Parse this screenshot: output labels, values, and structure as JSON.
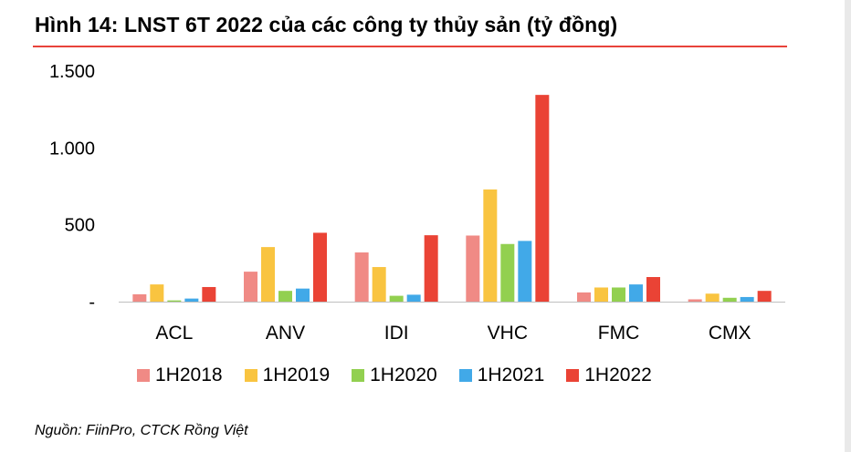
{
  "figure": {
    "title": "Hình 14: LNST 6T 2022 của các công ty thủy sản (tỷ đồng)",
    "source": "Nguồn: FiinPro, CTCK Rồng Việt",
    "rule_color": "#e8433a"
  },
  "chart_data": {
    "type": "bar",
    "title": "Hình 14: LNST 6T 2022 của các công ty thủy sản (tỷ đồng)",
    "xlabel": "",
    "ylabel": "",
    "ylim": [
      0,
      1500
    ],
    "grid": false,
    "legend_position": "bottom",
    "y_ticks": [
      {
        "value": 0,
        "label": "-"
      },
      {
        "value": 500,
        "label": "500"
      },
      {
        "value": 1000,
        "label": "1.000"
      },
      {
        "value": 1500,
        "label": "1.500"
      }
    ],
    "categories": [
      "ACL",
      "ANV",
      "IDI",
      "VHC",
      "FMC",
      "CMX"
    ],
    "series": [
      {
        "name": "1H2018",
        "color": "#f08a85",
        "values": [
          48,
          195,
          320,
          430,
          60,
          15
        ]
      },
      {
        "name": "1H2019",
        "color": "#f9c440",
        "values": [
          112,
          355,
          225,
          730,
          92,
          52
        ]
      },
      {
        "name": "1H2020",
        "color": "#92d050",
        "values": [
          8,
          70,
          38,
          375,
          92,
          25
        ]
      },
      {
        "name": "1H2021",
        "color": "#41a9e8",
        "values": [
          20,
          85,
          45,
          395,
          112,
          30
        ]
      },
      {
        "name": "1H2022",
        "color": "#ea4335",
        "values": [
          95,
          448,
          432,
          1345,
          160,
          70
        ]
      }
    ]
  }
}
